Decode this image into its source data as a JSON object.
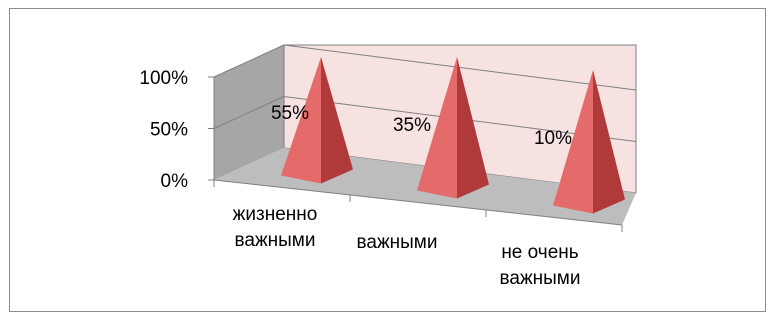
{
  "chart_data": {
    "type": "bar",
    "subtype": "3d-pyramid",
    "categories": [
      [
        "жизненно",
        "важными"
      ],
      [
        "важными"
      ],
      [
        "не очень",
        "важными"
      ]
    ],
    "values": [
      55,
      35,
      10
    ],
    "data_labels": [
      "55%",
      "35%",
      "10%"
    ],
    "y_ticks": [
      "0%",
      "50%",
      "100%"
    ],
    "ylim": [
      0,
      100
    ],
    "grid": true,
    "legend": "none",
    "colors": {
      "pyramid_light": "#e56a6a",
      "pyramid_dark": "#b03a3a",
      "back_wall": "#f7e2e2",
      "side_wall": "#a6a6a6",
      "floor": "#bdbdbd",
      "gridline": "#7f7f7f",
      "axis": "#7f7f7f"
    }
  }
}
